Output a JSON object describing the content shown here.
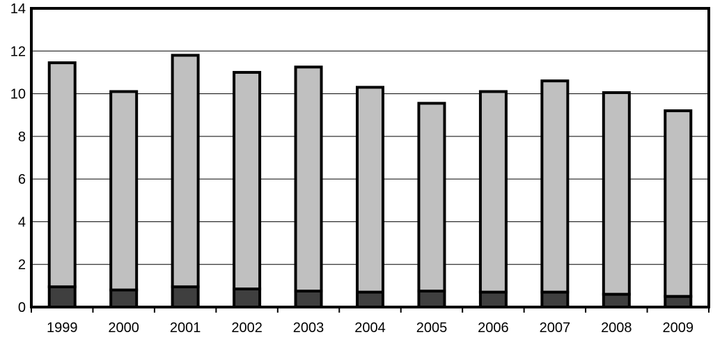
{
  "chart_data": {
    "type": "bar",
    "stacked": true,
    "categories": [
      "1999",
      "2000",
      "2001",
      "2002",
      "2003",
      "2004",
      "2005",
      "2006",
      "2007",
      "2008",
      "2009"
    ],
    "series": [
      {
        "values": [
          0.95,
          0.8,
          0.95,
          0.85,
          0.75,
          0.7,
          0.75,
          0.7,
          0.7,
          0.6,
          0.5
        ],
        "color": "#3f3f3f"
      },
      {
        "values": [
          10.5,
          9.3,
          10.85,
          10.15,
          10.5,
          9.6,
          8.8,
          9.4,
          9.9,
          9.45,
          8.7
        ],
        "color": "#c0c0c0"
      }
    ],
    "ylim": [
      0,
      14
    ],
    "yticks": [
      0,
      2,
      4,
      6,
      8,
      10,
      12,
      14
    ],
    "grid": true,
    "legend": "none",
    "title": "",
    "xlabel": "",
    "ylabel": ""
  }
}
